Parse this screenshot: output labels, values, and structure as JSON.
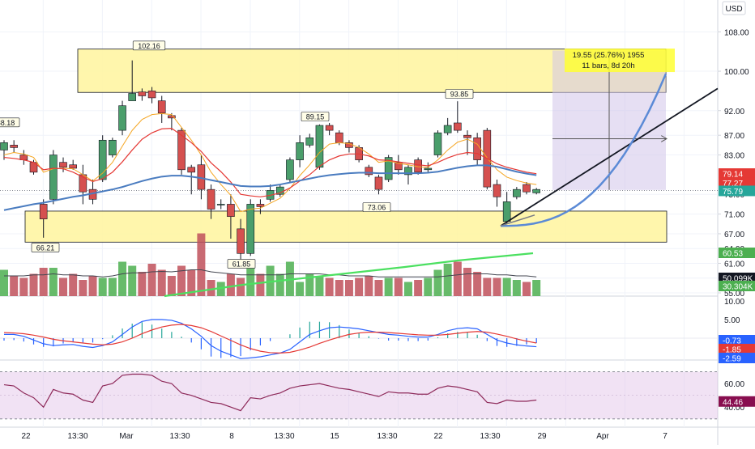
{
  "currency": "USD",
  "price_axis": {
    "ticks": [
      "108.00",
      "100.00",
      "92.00",
      "87.00",
      "83.00",
      "75.00",
      "71.00",
      "67.00",
      "64.00",
      "61.00",
      "58.00",
      "55.00"
    ],
    "badges": [
      {
        "label": "79.14",
        "color": "#e53935"
      },
      {
        "label": "77.27",
        "color": "#e53935"
      },
      {
        "label": "75.79",
        "color": "#26a69a"
      },
      {
        "label": "60.53",
        "color": "#4caf50"
      },
      {
        "label": "50.099K",
        "color": "#131722"
      },
      {
        "label": "30.304K",
        "color": "#4caf50"
      }
    ]
  },
  "macd_axis": {
    "ticks": [
      "10.00",
      "5.00",
      "0.00"
    ],
    "badges": [
      {
        "label": "-0.73",
        "color": "#2962ff"
      },
      {
        "label": "-1.85",
        "color": "#e53935"
      },
      {
        "label": "-2.59",
        "color": "#2962ff"
      }
    ]
  },
  "rsi_axis": {
    "ticks": [
      "60.00",
      "40.00"
    ],
    "badges": [
      {
        "label": "44.46",
        "color": "#880e4f"
      }
    ]
  },
  "time_axis": [
    "22",
    "13:30",
    "Mar",
    "13:30",
    "8",
    "13:30",
    "15",
    "13:30",
    "22",
    "13:30",
    "29",
    "Apr",
    "7"
  ],
  "annotations": {
    "high_1": "102.16",
    "low_1": "66.21",
    "high_2": "89.15",
    "low_2": "61.85",
    "low_3": "73.06",
    "high_3": "93.85"
  },
  "measure_tool": {
    "line1": "19.55 (25.76%) 1955",
    "line2": "11 bars, 8d 20h"
  },
  "chart_data": {
    "type": "candlestick",
    "price_ylim": [
      55,
      112
    ],
    "candles": [
      {
        "o": 84,
        "h": 86,
        "l": 82,
        "c": 85.5
      },
      {
        "o": 85,
        "h": 86,
        "l": 83.5,
        "c": 84.5
      },
      {
        "o": 83,
        "h": 84,
        "l": 81,
        "c": 82
      },
      {
        "o": 81.5,
        "h": 82,
        "l": 79,
        "c": 79.5
      },
      {
        "o": 73,
        "h": 74,
        "l": 66.2,
        "c": 70
      },
      {
        "o": 74,
        "h": 84,
        "l": 73,
        "c": 83
      },
      {
        "o": 81.5,
        "h": 82.5,
        "l": 79.5,
        "c": 80.5
      },
      {
        "o": 81,
        "h": 82,
        "l": 80,
        "c": 80.3
      },
      {
        "o": 79,
        "h": 81,
        "l": 73,
        "c": 75.5
      },
      {
        "o": 76,
        "h": 78,
        "l": 73,
        "c": 74
      },
      {
        "o": 78,
        "h": 87,
        "l": 77.5,
        "c": 86
      },
      {
        "o": 83,
        "h": 86.5,
        "l": 82.5,
        "c": 86
      },
      {
        "o": 88,
        "h": 94,
        "l": 87,
        "c": 93
      },
      {
        "o": 94,
        "h": 102.2,
        "l": 94,
        "c": 95.5
      },
      {
        "o": 95.8,
        "h": 96.5,
        "l": 94,
        "c": 95
      },
      {
        "o": 96,
        "h": 96.8,
        "l": 93.5,
        "c": 94.6
      },
      {
        "o": 94,
        "h": 95,
        "l": 89.5,
        "c": 91.5
      },
      {
        "o": 91,
        "h": 91.5,
        "l": 88,
        "c": 90.5
      },
      {
        "o": 88,
        "h": 88.5,
        "l": 79,
        "c": 80
      },
      {
        "o": 80.5,
        "h": 81,
        "l": 75,
        "c": 79.5
      },
      {
        "o": 81,
        "h": 83,
        "l": 74,
        "c": 76
      },
      {
        "o": 76,
        "h": 77,
        "l": 70,
        "c": 72
      },
      {
        "o": 73,
        "h": 74,
        "l": 72,
        "c": 73
      },
      {
        "o": 73,
        "h": 75,
        "l": 66,
        "c": 70.5
      },
      {
        "o": 68,
        "h": 70,
        "l": 61.85,
        "c": 63
      },
      {
        "o": 63,
        "h": 74,
        "l": 62.5,
        "c": 73
      },
      {
        "o": 73,
        "h": 74,
        "l": 71,
        "c": 72.5
      },
      {
        "o": 74,
        "h": 77,
        "l": 73.5,
        "c": 75.8
      },
      {
        "o": 75,
        "h": 77,
        "l": 74.5,
        "c": 76.5
      },
      {
        "o": 78,
        "h": 82.5,
        "l": 77.5,
        "c": 82
      },
      {
        "o": 82,
        "h": 87,
        "l": 80.5,
        "c": 85.5
      },
      {
        "o": 85,
        "h": 87.3,
        "l": 84.5,
        "c": 86.5
      },
      {
        "o": 80.5,
        "h": 89.2,
        "l": 80,
        "c": 89
      },
      {
        "o": 89,
        "h": 89.5,
        "l": 87,
        "c": 88
      },
      {
        "o": 87.5,
        "h": 88,
        "l": 85,
        "c": 85.5
      },
      {
        "o": 85.5,
        "h": 86,
        "l": 83.5,
        "c": 84.5
      },
      {
        "o": 84.5,
        "h": 85,
        "l": 81.5,
        "c": 82
      },
      {
        "o": 80.5,
        "h": 81,
        "l": 78.5,
        "c": 79
      },
      {
        "o": 78.5,
        "h": 79,
        "l": 75,
        "c": 76
      },
      {
        "o": 78,
        "h": 83,
        "l": 77.5,
        "c": 82.5
      },
      {
        "o": 81.5,
        "h": 83,
        "l": 79,
        "c": 80
      },
      {
        "o": 79,
        "h": 81,
        "l": 77,
        "c": 80.5
      },
      {
        "o": 82,
        "h": 82.5,
        "l": 79,
        "c": 79.5
      },
      {
        "o": 80,
        "h": 81.5,
        "l": 79.5,
        "c": 80.3
      },
      {
        "o": 83,
        "h": 88,
        "l": 82.5,
        "c": 87.5
      },
      {
        "o": 87.5,
        "h": 90.5,
        "l": 87,
        "c": 89
      },
      {
        "o": 89.5,
        "h": 93.9,
        "l": 87.5,
        "c": 88
      },
      {
        "o": 87,
        "h": 88,
        "l": 83,
        "c": 86.5
      },
      {
        "o": 86.5,
        "h": 87.5,
        "l": 81,
        "c": 82
      },
      {
        "o": 88,
        "h": 88.5,
        "l": 76,
        "c": 76.5
      },
      {
        "o": 77,
        "h": 78,
        "l": 72.5,
        "c": 74.5
      },
      {
        "o": 69.5,
        "h": 75.5,
        "l": 69,
        "c": 73.5
      },
      {
        "o": 74.5,
        "h": 76.5,
        "l": 74,
        "c": 76
      },
      {
        "o": 77,
        "h": 77.5,
        "l": 75,
        "c": 75.5
      },
      {
        "o": 75.3,
        "h": 76.3,
        "l": 75,
        "c": 76
      }
    ],
    "ema_fast_blue": [
      71.8,
      72.2,
      72.6,
      73,
      73.3,
      73.7,
      74.1,
      74.5,
      74.8,
      75.2,
      75.6,
      76,
      76.5,
      77.1,
      77.7,
      78.2,
      78.6,
      78.8,
      78.8,
      78.6,
      78.3,
      77.9,
      77.5,
      77.1,
      76.7,
      76.6,
      76.6,
      76.7,
      77,
      77.4,
      77.8,
      78.2,
      78.6,
      78.9,
      79.1,
      79.3,
      79.4,
      79.4,
      79.3,
      79.3,
      79.3,
      79.3,
      79.3,
      79.4,
      79.6,
      80,
      80.4,
      80.7,
      80.9,
      80.9,
      80.6,
      80.1,
      79.6,
      79.2,
      78.9
    ],
    "ema_red": [
      82.5,
      82.3,
      82,
      81.5,
      80,
      80.3,
      80.2,
      79.5,
      78.5,
      77.6,
      78.2,
      79.5,
      81.6,
      84,
      86.2,
      87.5,
      88.3,
      88.4,
      87,
      85.5,
      83.7,
      81.4,
      79.6,
      77.5,
      75,
      74.7,
      74.5,
      74.8,
      75.3,
      76.3,
      77.7,
      79,
      80.7,
      82,
      82.8,
      83.2,
      83.2,
      82.8,
      82,
      81.9,
      81.6,
      81.3,
      81,
      80.8,
      81.5,
      82.4,
      83.1,
      83.5,
      83.3,
      82.3,
      81.2,
      80.5,
      80,
      79.5,
      79.2
    ],
    "ema_orange": [
      83,
      83.5,
      83.2,
      82.5,
      79.5,
      80.2,
      80.3,
      80.2,
      79,
      77.7,
      79.3,
      81.5,
      84.8,
      88,
      90.2,
      91.2,
      91.4,
      91.2,
      88.6,
      86,
      83,
      79.5,
      77,
      74.8,
      71.5,
      72,
      72.2,
      73.2,
      74.2,
      76.2,
      78.8,
      81,
      83.5,
      85.2,
      85.5,
      85.3,
      84.5,
      83.2,
      81.5,
      81.8,
      81.3,
      81,
      80.6,
      80.5,
      82,
      84,
      85.6,
      86.2,
      85.2,
      82.4,
      80,
      78.5,
      77.8,
      77.3,
      77
    ],
    "volume": [
      13,
      10,
      9,
      11,
      14,
      14,
      9,
      11,
      8,
      10,
      9,
      9,
      17,
      15,
      12,
      16,
      13,
      10,
      15,
      13,
      31,
      8,
      7,
      11,
      9,
      14,
      11,
      15,
      11,
      17,
      7,
      11,
      10,
      9,
      8,
      8,
      9,
      10,
      8,
      9,
      9,
      7,
      8,
      9,
      13,
      16,
      17,
      14,
      12,
      9,
      9,
      9,
      8,
      7,
      8
    ],
    "volume_ma": [
      10,
      10,
      10,
      10.5,
      10.5,
      11,
      10.5,
      10.5,
      10,
      10,
      9.5,
      10,
      11,
      11.5,
      11.5,
      12,
      12.2,
      12,
      12.5,
      13,
      13,
      12,
      11.5,
      11,
      10.5,
      10.5,
      10.5,
      10.5,
      10.5,
      11,
      11,
      11,
      11,
      10.5,
      10.5,
      10,
      10,
      10,
      9.5,
      9.5,
      9.5,
      9.5,
      9.5,
      9.5,
      9.5,
      10,
      10.5,
      11,
      11,
      11,
      10.5,
      10.5,
      10,
      10,
      9.5
    ],
    "macd": [
      1,
      1,
      0.5,
      -0.5,
      -1.5,
      -2,
      -1.8,
      -1.7,
      -2.2,
      -2.5,
      -2,
      -1,
      1,
      3,
      4.5,
      5,
      5,
      4.8,
      4,
      2.5,
      0.5,
      -2,
      -3.5,
      -4.5,
      -5.5,
      -5.3,
      -5,
      -4.5,
      -4,
      -3,
      -1,
      1,
      2,
      2.8,
      3,
      2.8,
      2.5,
      2,
      1.5,
      1,
      0.8,
      0.5,
      0.3,
      0.3,
      1,
      2,
      2.6,
      2.8,
      2.5,
      1,
      -0.5,
      -1.3,
      -1.8,
      -2.1,
      -2.3
    ],
    "macd_signal": [
      1.5,
      1.4,
      1.2,
      0.8,
      0.3,
      -0.3,
      -0.7,
      -1,
      -1.3,
      -1.6,
      -1.8,
      -1.6,
      -1,
      0,
      1.2,
      2.2,
      3,
      3.5,
      3.7,
      3.4,
      2.8,
      1.8,
      0.6,
      -0.6,
      -1.8,
      -2.8,
      -3.5,
      -3.9,
      -4,
      -3.8,
      -3.2,
      -2.4,
      -1.4,
      -0.5,
      0.3,
      1,
      1.4,
      1.6,
      1.6,
      1.5,
      1.3,
      1.1,
      0.9,
      0.8,
      0.8,
      1,
      1.3,
      1.6,
      1.8,
      1.6,
      1.1,
      0.5,
      -0.2,
      -0.8,
      -1.3
    ],
    "rsi": [
      59,
      58,
      52,
      48,
      40,
      55,
      52,
      51,
      46,
      44,
      58,
      60,
      67,
      68,
      68,
      67,
      62,
      60,
      52,
      50,
      47,
      44,
      43,
      40,
      37,
      48,
      47,
      50,
      52,
      56,
      58,
      59,
      60,
      58,
      56,
      55,
      53,
      51,
      49,
      53,
      52,
      52,
      51,
      51,
      56,
      58,
      57,
      55,
      53,
      44,
      43,
      46,
      45,
      45,
      46
    ],
    "rsi_band": [
      70,
      30
    ]
  }
}
